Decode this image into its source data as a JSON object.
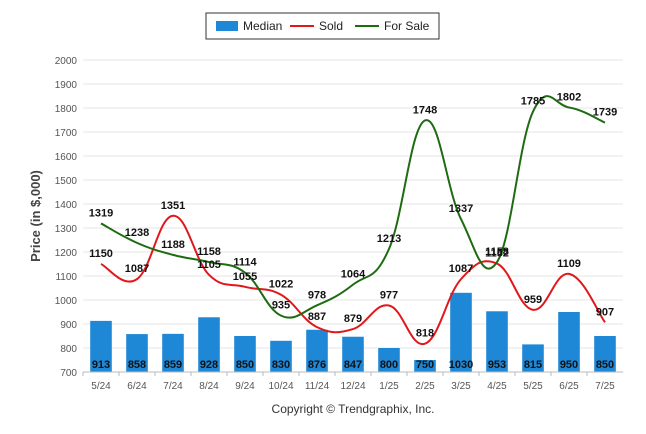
{
  "chart_data": {
    "type": "bar",
    "categories": [
      "5/24",
      "6/24",
      "7/24",
      "8/24",
      "9/24",
      "10/24",
      "11/24",
      "12/24",
      "1/25",
      "2/25",
      "3/25",
      "4/25",
      "5/25",
      "6/25",
      "7/25"
    ],
    "ylabel": "Price (in $,000)",
    "ylim": [
      700,
      2000
    ],
    "yticks": [
      700,
      800,
      900,
      1000,
      1100,
      1200,
      1300,
      1400,
      1500,
      1600,
      1700,
      1800,
      1900,
      2000
    ],
    "grid": true,
    "legend_position": "top-center",
    "series": [
      {
        "name": "Median",
        "type": "bar",
        "color": "#1f88d6",
        "values": [
          913,
          858,
          859,
          928,
          850,
          830,
          876,
          847,
          800,
          750,
          1030,
          953,
          815,
          950,
          850
        ]
      },
      {
        "name": "Sold",
        "type": "line",
        "color": "#e0181b",
        "values": [
          1150,
          1087,
          1351,
          1105,
          1055,
          1022,
          887,
          879,
          977,
          818,
          1087,
          1152,
          959,
          1109,
          907
        ]
      },
      {
        "name": "For Sale",
        "type": "line",
        "color": "#1e6b12",
        "values": [
          1319,
          1238,
          1188,
          1158,
          1114,
          935,
          978,
          1064,
          1213,
          1748,
          1337,
          1158,
          1785,
          1802,
          1739
        ]
      }
    ]
  },
  "footer": {
    "copyright": "Copyright © Trendgraphix, Inc."
  }
}
